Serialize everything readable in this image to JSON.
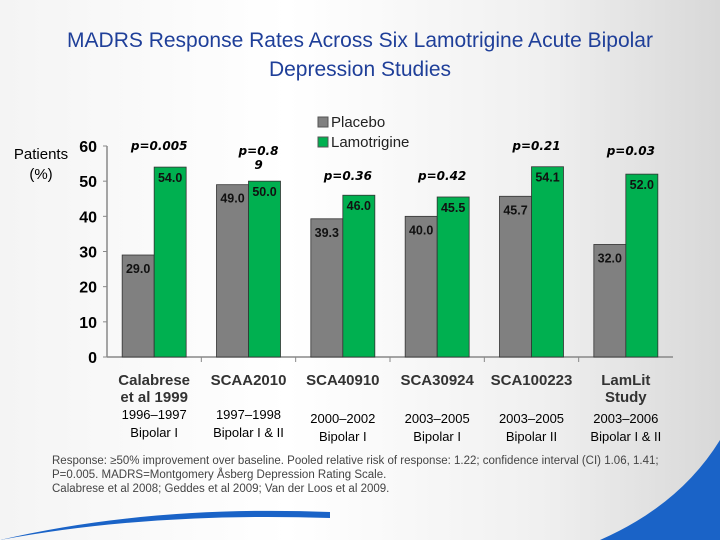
{
  "chart_data": {
    "type": "bar",
    "title": "MADRS Response Rates Across Six Lamotrigine Acute Bipolar Depression Studies",
    "ylabel": "Patients (%)",
    "ylim": [
      0,
      60
    ],
    "yticks": [
      "0",
      "10",
      "20",
      "30",
      "40",
      "50",
      "60"
    ],
    "categories": [
      "Calabrese et al 1999",
      "SCAA2010",
      "SCA40910",
      "SCA30924",
      "SCA100223",
      "LamLit Study"
    ],
    "years": [
      "1996–1997",
      "1997–1998",
      "2000–2002",
      "2003–2005",
      "2003–2005",
      "2003–2006"
    ],
    "populations": [
      "Bipolar I",
      "Bipolar I & II",
      "Bipolar I",
      "Bipolar I",
      "Bipolar II",
      "Bipolar I & II"
    ],
    "series": [
      {
        "name": "Placebo",
        "color": "#808080",
        "values": [
          29.0,
          49.0,
          39.3,
          40.0,
          45.7,
          32.0
        ],
        "labels": [
          "29.0",
          "49.0",
          "39.3",
          "40.0",
          "45.7",
          "32.0"
        ]
      },
      {
        "name": "Lamotrigine",
        "color": "#00b050",
        "values": [
          54.0,
          50.0,
          46.0,
          45.5,
          54.1,
          52.0
        ],
        "labels": [
          "54.0",
          "50.0",
          "46.0",
          "45.5",
          "54.1",
          "52.0"
        ]
      }
    ],
    "pvalues": [
      "p=0.005",
      "p=0.8 9",
      "p=0.36",
      "p=0.42",
      "p=0.21",
      "p=0.03"
    ],
    "legend": "top-center",
    "grid": false
  },
  "footnote": {
    "line1": "Response: ≥50% improvement over baseline. Pooled relative risk of response: 1.22; confidence interval (CI) 1.06, 1.41;",
    "line2": "P=0.005. MADRS=Montgomery Åsberg Depression Rating Scale.",
    "line3": "Calabrese et al 2008; Geddes et al 2009; Van der Loos et al 2009."
  }
}
